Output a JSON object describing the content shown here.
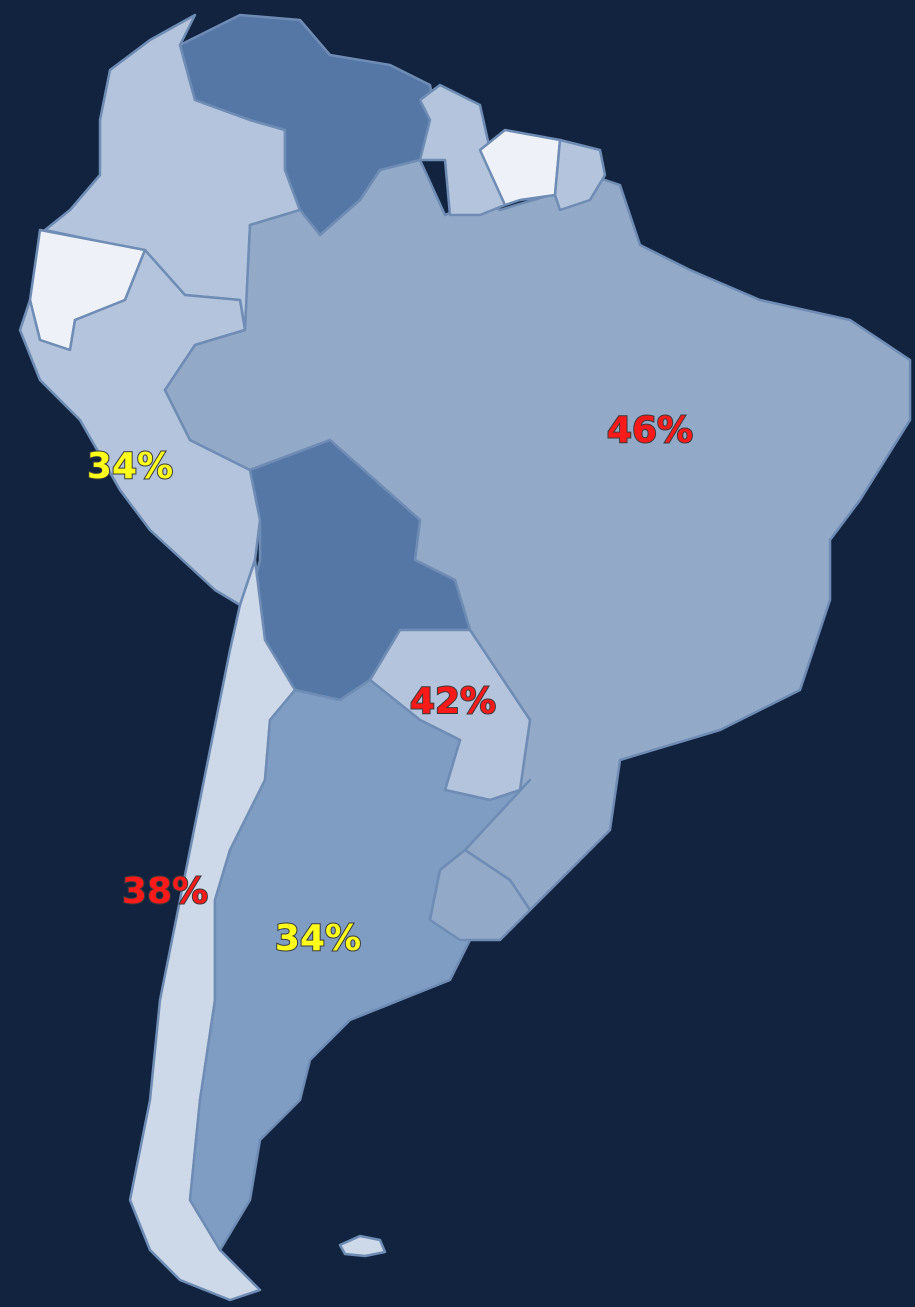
{
  "labels": [
    {
      "text": "46%",
      "color": "#ff1a1a"
    },
    {
      "text": "34%",
      "color": "#ffff1a"
    },
    {
      "text": "42%",
      "color": "#ff1a1a"
    },
    {
      "text": "38%",
      "color": "#ff1a1a"
    },
    {
      "text": "34%",
      "color": "#ffff1a"
    }
  ]
}
